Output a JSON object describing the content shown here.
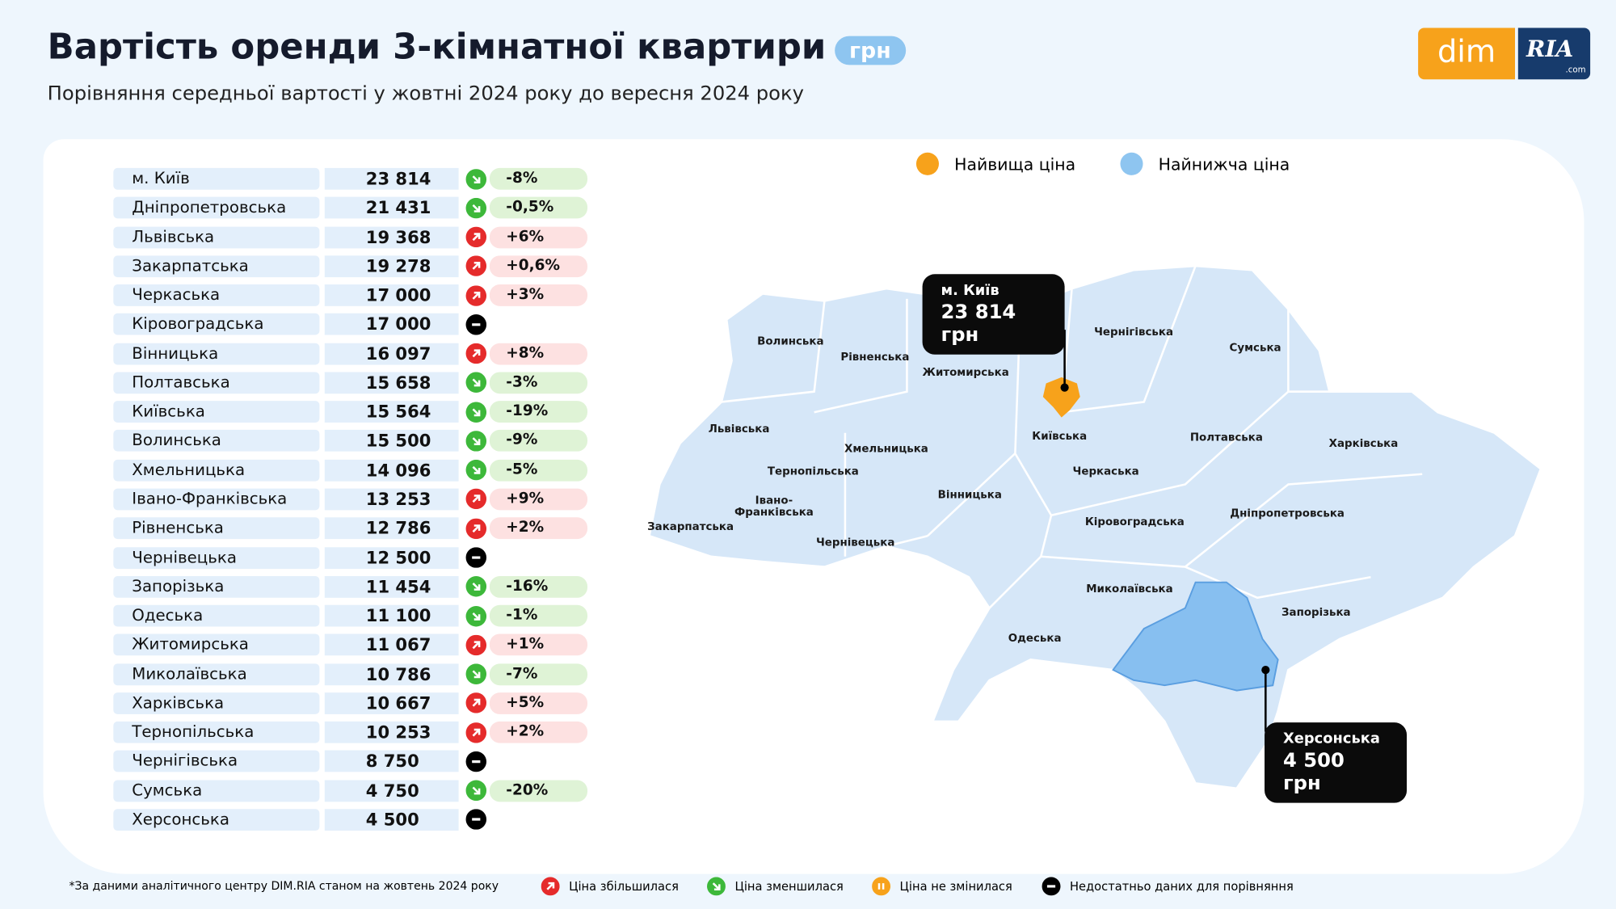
{
  "header": {
    "title": "Вартість оренди 3-кімнатної квартири",
    "unit": "грн",
    "subtitle": "Порівняння середньої вартості у жовтні 2024 року до вересня 2024 року"
  },
  "logo": {
    "left": "dim",
    "right": "RIA",
    "suffix": ".com"
  },
  "table": {
    "rows": [
      {
        "region": "м. Київ",
        "price": "23 814",
        "trend": "down",
        "change": "-8%"
      },
      {
        "region": "Дніпропетровська",
        "price": "21 431",
        "trend": "down",
        "change": "-0,5%"
      },
      {
        "region": "Львівська",
        "price": "19 368",
        "trend": "up",
        "change": "+6%"
      },
      {
        "region": "Закарпатська",
        "price": "19 278",
        "trend": "up",
        "change": "+0,6%"
      },
      {
        "region": "Черкаська",
        "price": "17 000",
        "trend": "up",
        "change": "+3%"
      },
      {
        "region": "Кіровоградська",
        "price": "17 000",
        "trend": "none"
      },
      {
        "region": "Вінницька",
        "price": "16 097",
        "trend": "up",
        "change": "+8%"
      },
      {
        "region": "Полтавська",
        "price": "15 658",
        "trend": "down",
        "change": "-3%"
      },
      {
        "region": "Київська",
        "price": "15 564",
        "trend": "down",
        "change": "-19%"
      },
      {
        "region": "Волинська",
        "price": "15 500",
        "trend": "down",
        "change": "-9%"
      },
      {
        "region": "Хмельницька",
        "price": "14 096",
        "trend": "down",
        "change": "-5%"
      },
      {
        "region": "Івано-Франківська",
        "price": "13 253",
        "trend": "up",
        "change": "+9%"
      },
      {
        "region": "Рівненська",
        "price": "12 786",
        "trend": "up",
        "change": "+2%"
      },
      {
        "region": "Чернівецька",
        "price": "12 500",
        "trend": "none"
      },
      {
        "region": "Запорізька",
        "price": "11 454",
        "trend": "down",
        "change": "-16%"
      },
      {
        "region": "Одеська",
        "price": "11 100",
        "trend": "down",
        "change": "-1%"
      },
      {
        "region": "Житомирська",
        "price": "11 067",
        "trend": "up",
        "change": "+1%"
      },
      {
        "region": "Миколаївська",
        "price": "10 786",
        "trend": "down",
        "change": "-7%"
      },
      {
        "region": "Харківська",
        "price": "10 667",
        "trend": "up",
        "change": "+5%"
      },
      {
        "region": "Тернопільська",
        "price": "10 253",
        "trend": "up",
        "change": "+2%"
      },
      {
        "region": "Чернігівська",
        "price": "8 750",
        "trend": "none"
      },
      {
        "region": "Сумська",
        "price": "4 750",
        "trend": "down",
        "change": "-20%"
      },
      {
        "region": "Херсонська",
        "price": "4 500",
        "trend": "none"
      }
    ]
  },
  "map": {
    "legend": [
      "Найвища ціна",
      "Найнижча ціна"
    ],
    "labels": [
      "Волинська",
      "Рівненська",
      "Житомирська",
      "Чернігівська",
      "Сумська",
      "Львівська",
      "Хмельницька",
      "Київська",
      "Полтавська",
      "Харківська",
      "Тернопільська",
      "Черкаська",
      "Вінницька",
      "Івано-\nФранківська",
      "Закарпатська",
      "Чернівецька",
      "Кіровоградська",
      "Дніпропетровська",
      "Миколаївська",
      "Запорізька",
      "Одеська"
    ],
    "highest": {
      "name": "м. Київ",
      "value": "23 814 грн"
    },
    "lowest": {
      "name": "Херсонська",
      "value": "4 500 грн"
    }
  },
  "footer": {
    "note": "*За даними аналітичного центру DIM.RIA станом на жовтень 2024 року",
    "legend": [
      {
        "trend": "up",
        "label": "Ціна збільшилася"
      },
      {
        "trend": "down",
        "label": "Ціна зменшилася"
      },
      {
        "trend": "same",
        "label": "Ціна не змінилася"
      },
      {
        "trend": "none",
        "label": "Недостатньо даних для порівняння"
      }
    ]
  }
}
